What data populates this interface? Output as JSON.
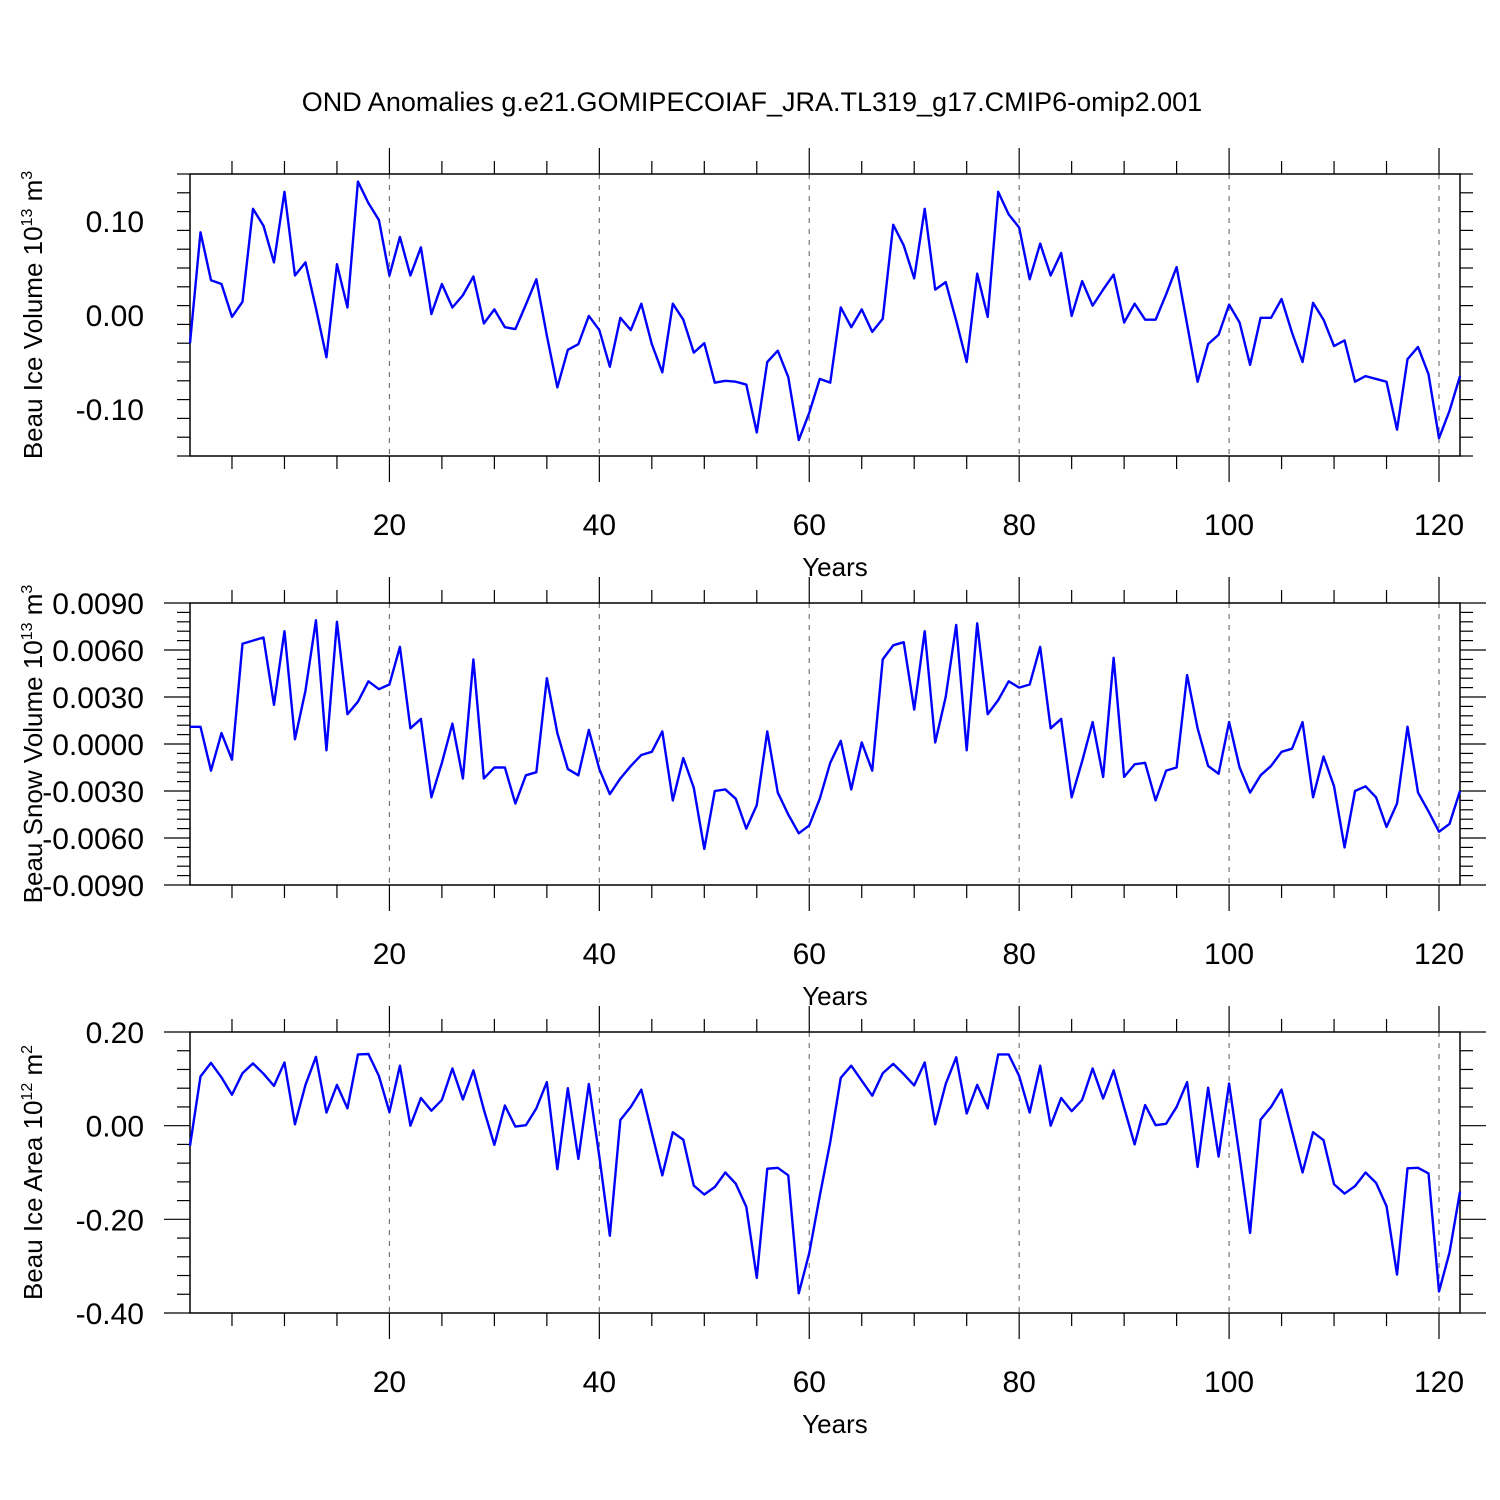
{
  "page": {
    "title": "OND Anomalies g.e21.GOMIPECOIAF_JRA.TL319_g17.CMIP6-omip2.001"
  },
  "chart_data": [
    {
      "type": "line",
      "title": "",
      "xlabel": "Years",
      "ylabel": "Beau Ice Volume 10",
      "ylabel_sup1": "13",
      "ylabel_mid": " m",
      "ylabel_sup2": "3",
      "xlim": [
        1,
        122
      ],
      "ylim": [
        -0.15,
        0.15
      ],
      "xticks": [
        20,
        40,
        60,
        80,
        100,
        120
      ],
      "xtick_labels": [
        "20",
        "40",
        "60",
        "80",
        "100",
        "120"
      ],
      "yticks": [
        0.1,
        0.0,
        -0.1
      ],
      "ytick_labels": [
        "0.10",
        "0.00",
        "-0.10"
      ],
      "grid": "vertical dashed at major x ticks",
      "color": "#0000ff",
      "series": [
        {
          "x_start": 1,
          "values": [
            -0.03,
            0.088,
            0.037,
            0.033,
            -0.002,
            0.014,
            0.113,
            0.095,
            0.056,
            0.131,
            0.042,
            0.056,
            0.007,
            -0.045,
            0.054,
            0.008,
            0.142,
            0.119,
            0.101,
            0.042,
            0.083,
            0.042,
            0.072,
            0.001,
            0.033,
            0.008,
            0.021,
            0.041,
            -0.009,
            0.006,
            -0.013,
            -0.015,
            0.011,
            0.038,
            -0.022,
            -0.077,
            -0.037,
            -0.031,
            -0.001,
            -0.016,
            -0.055,
            -0.003,
            -0.016,
            0.012,
            -0.031,
            -0.061,
            0.012,
            -0.005,
            -0.04,
            -0.03,
            -0.072,
            -0.07,
            -0.071,
            -0.074,
            -0.125,
            -0.05,
            -0.038,
            -0.066,
            -0.133,
            -0.104,
            -0.068,
            -0.072,
            0.008,
            -0.013,
            0.006,
            -0.018,
            -0.004,
            0.096,
            0.074,
            0.039,
            0.113,
            0.027,
            0.035,
            -0.006,
            -0.05,
            0.044,
            -0.002,
            0.131,
            0.107,
            0.093,
            0.038,
            0.076,
            0.042,
            0.066,
            -0.001,
            0.036,
            0.01,
            0.027,
            0.043,
            -0.008,
            0.012,
            -0.005,
            -0.005,
            0.022,
            0.051,
            -0.01,
            -0.071,
            -0.031,
            -0.021,
            0.011,
            -0.008,
            -0.053,
            -0.003,
            -0.003,
            0.017,
            -0.019,
            -0.05,
            0.013,
            -0.005,
            -0.033,
            -0.027,
            -0.071,
            -0.065,
            -0.068,
            -0.071,
            -0.122,
            -0.047,
            -0.034,
            -0.063,
            -0.131,
            -0.102,
            -0.065
          ]
        }
      ]
    },
    {
      "type": "line",
      "title": "",
      "xlabel": "Years",
      "ylabel": "Beau Snow Volume 10",
      "ylabel_sup1": "13",
      "ylabel_mid": " m",
      "ylabel_sup2": "3",
      "xlim": [
        1,
        122
      ],
      "ylim": [
        -0.009,
        0.009
      ],
      "xticks": [
        20,
        40,
        60,
        80,
        100,
        120
      ],
      "xtick_labels": [
        "20",
        "40",
        "60",
        "80",
        "100",
        "120"
      ],
      "yticks": [
        0.009,
        0.006,
        0.003,
        0.0,
        -0.003,
        -0.006,
        -0.009
      ],
      "ytick_labels": [
        "0.0090",
        "0.0060",
        "0.0030",
        "0.0000",
        "-0.0030",
        "-0.0060",
        "-0.0090"
      ],
      "grid": "vertical dashed at major x ticks",
      "color": "#0000ff",
      "series": [
        {
          "x_start": 1,
          "values": [
            0.0011,
            0.0011,
            -0.0017,
            0.0007,
            -0.001,
            0.0064,
            0.0066,
            0.0068,
            0.0025,
            0.0072,
            0.0003,
            0.0034,
            0.0079,
            -0.0004,
            0.0078,
            0.0019,
            0.0027,
            0.004,
            0.0035,
            0.0038,
            0.0062,
            0.001,
            0.0016,
            -0.0034,
            -0.0012,
            0.0013,
            -0.0022,
            0.0054,
            -0.0022,
            -0.0015,
            -0.0015,
            -0.0038,
            -0.002,
            -0.0018,
            0.0042,
            0.0007,
            -0.0016,
            -0.002,
            0.0009,
            -0.0016,
            -0.0032,
            -0.0022,
            -0.0014,
            -0.0007,
            -0.0005,
            0.0008,
            -0.0036,
            -0.0009,
            -0.0028,
            -0.0067,
            -0.003,
            -0.0029,
            -0.0035,
            -0.0054,
            -0.0039,
            0.0008,
            -0.0031,
            -0.0045,
            -0.0057,
            -0.0052,
            -0.0035,
            -0.0012,
            0.0002,
            -0.0029,
            0.0001,
            -0.0017,
            0.0054,
            0.0063,
            0.0065,
            0.0022,
            0.0072,
            0.0001,
            0.003,
            0.0076,
            -0.0004,
            0.0077,
            0.0019,
            0.0028,
            0.004,
            0.0036,
            0.0038,
            0.0062,
            0.001,
            0.0016,
            -0.0034,
            -0.0011,
            0.0014,
            -0.0021,
            0.0055,
            -0.0021,
            -0.0013,
            -0.0012,
            -0.0036,
            -0.0017,
            -0.0015,
            0.0044,
            0.001,
            -0.0014,
            -0.0019,
            0.0014,
            -0.0015,
            -0.0031,
            -0.002,
            -0.0014,
            -0.0005,
            -0.0003,
            0.0014,
            -0.0034,
            -0.0008,
            -0.0027,
            -0.0066,
            -0.003,
            -0.0027,
            -0.0034,
            -0.0053,
            -0.0038,
            0.0011,
            -0.0031,
            -0.0043,
            -0.0056,
            -0.0051,
            -0.003
          ]
        }
      ]
    },
    {
      "type": "line",
      "title": "",
      "xlabel": "Years",
      "ylabel": "Beau Ice Area 10",
      "ylabel_sup1": "12",
      "ylabel_mid": " m",
      "ylabel_sup2": "2",
      "xlim": [
        1,
        122
      ],
      "ylim": [
        -0.4,
        0.2
      ],
      "xticks": [
        20,
        40,
        60,
        80,
        100,
        120
      ],
      "xtick_labels": [
        "20",
        "40",
        "60",
        "80",
        "100",
        "120"
      ],
      "yticks": [
        0.2,
        0.0,
        -0.2,
        -0.4
      ],
      "ytick_labels": [
        "0.20",
        "0.00",
        "-0.20",
        "-0.40"
      ],
      "grid": "vertical dashed at major x ticks",
      "color": "#0000ff",
      "series": [
        {
          "x_start": 1,
          "values": [
            -0.043,
            0.105,
            0.134,
            0.103,
            0.066,
            0.112,
            0.133,
            0.111,
            0.085,
            0.135,
            0.003,
            0.087,
            0.147,
            0.028,
            0.087,
            0.037,
            0.152,
            0.153,
            0.106,
            0.029,
            0.128,
            0.0,
            0.059,
            0.032,
            0.055,
            0.122,
            0.056,
            0.118,
            0.034,
            -0.041,
            0.043,
            -0.002,
            0.001,
            0.037,
            0.093,
            -0.093,
            0.08,
            -0.071,
            0.089,
            -0.066,
            -0.235,
            0.012,
            0.04,
            0.077,
            -0.015,
            -0.106,
            -0.014,
            -0.03,
            -0.128,
            -0.147,
            -0.131,
            -0.1,
            -0.124,
            -0.173,
            -0.325,
            -0.092,
            -0.09,
            -0.106,
            -0.358,
            -0.272,
            -0.15,
            -0.035,
            0.102,
            0.128,
            0.096,
            0.064,
            0.112,
            0.132,
            0.11,
            0.086,
            0.135,
            0.003,
            0.089,
            0.146,
            0.026,
            0.087,
            0.037,
            0.152,
            0.152,
            0.106,
            0.028,
            0.128,
            0.0,
            0.059,
            0.031,
            0.055,
            0.122,
            0.058,
            0.118,
            0.038,
            -0.04,
            0.044,
            0.001,
            0.004,
            0.04,
            0.093,
            -0.088,
            0.081,
            -0.066,
            0.09,
            -0.066,
            -0.229,
            0.013,
            0.04,
            0.077,
            -0.012,
            -0.1,
            -0.014,
            -0.031,
            -0.125,
            -0.145,
            -0.129,
            -0.1,
            -0.122,
            -0.172,
            -0.318,
            -0.091,
            -0.09,
            -0.102,
            -0.354,
            -0.271,
            -0.141
          ]
        }
      ]
    }
  ]
}
